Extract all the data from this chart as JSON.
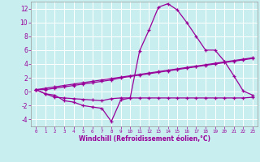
{
  "xlabel": "Windchill (Refroidissement éolien,°C)",
  "ylabel": "",
  "background_color": "#c8eef0",
  "grid_color": "#ffffff",
  "line_color": "#990099",
  "x_ticks": [
    0,
    1,
    2,
    3,
    4,
    5,
    6,
    7,
    8,
    9,
    10,
    11,
    12,
    13,
    14,
    15,
    16,
    17,
    18,
    19,
    20,
    21,
    22,
    23
  ],
  "ylim": [
    -5,
    13
  ],
  "xlim": [
    -0.5,
    23.5
  ],
  "yticks": [
    -4,
    -2,
    0,
    2,
    4,
    6,
    8,
    10,
    12
  ],
  "series": [
    [
      0.3,
      -0.3,
      -0.5,
      -1.3,
      -1.5,
      -2.0,
      -2.2,
      -2.4,
      -4.3,
      -1.2,
      -0.9,
      5.9,
      8.9,
      12.2,
      12.7,
      11.8,
      10.0,
      8.0,
      6.0,
      6.0,
      4.4,
      2.3,
      0.1,
      -0.5
    ],
    [
      0.3,
      -0.3,
      -0.8,
      -0.9,
      -1.0,
      -1.1,
      -1.2,
      -1.3,
      -1.0,
      -0.9,
      -0.9,
      -0.9,
      -0.9,
      -0.9,
      -0.9,
      -0.9,
      -0.9,
      -0.9,
      -0.9,
      -0.9,
      -0.9,
      -0.9,
      -0.9,
      -0.8
    ],
    [
      0.3,
      0.3,
      0.5,
      0.7,
      0.9,
      1.1,
      1.3,
      1.5,
      1.7,
      2.0,
      2.2,
      2.4,
      2.6,
      2.8,
      3.0,
      3.2,
      3.4,
      3.6,
      3.8,
      4.0,
      4.2,
      4.4,
      4.6,
      4.8
    ],
    [
      0.3,
      0.5,
      0.7,
      0.9,
      1.1,
      1.3,
      1.5,
      1.7,
      1.9,
      2.1,
      2.3,
      2.5,
      2.7,
      2.9,
      3.1,
      3.3,
      3.5,
      3.7,
      3.9,
      4.1,
      4.3,
      4.5,
      4.7,
      4.9
    ]
  ]
}
